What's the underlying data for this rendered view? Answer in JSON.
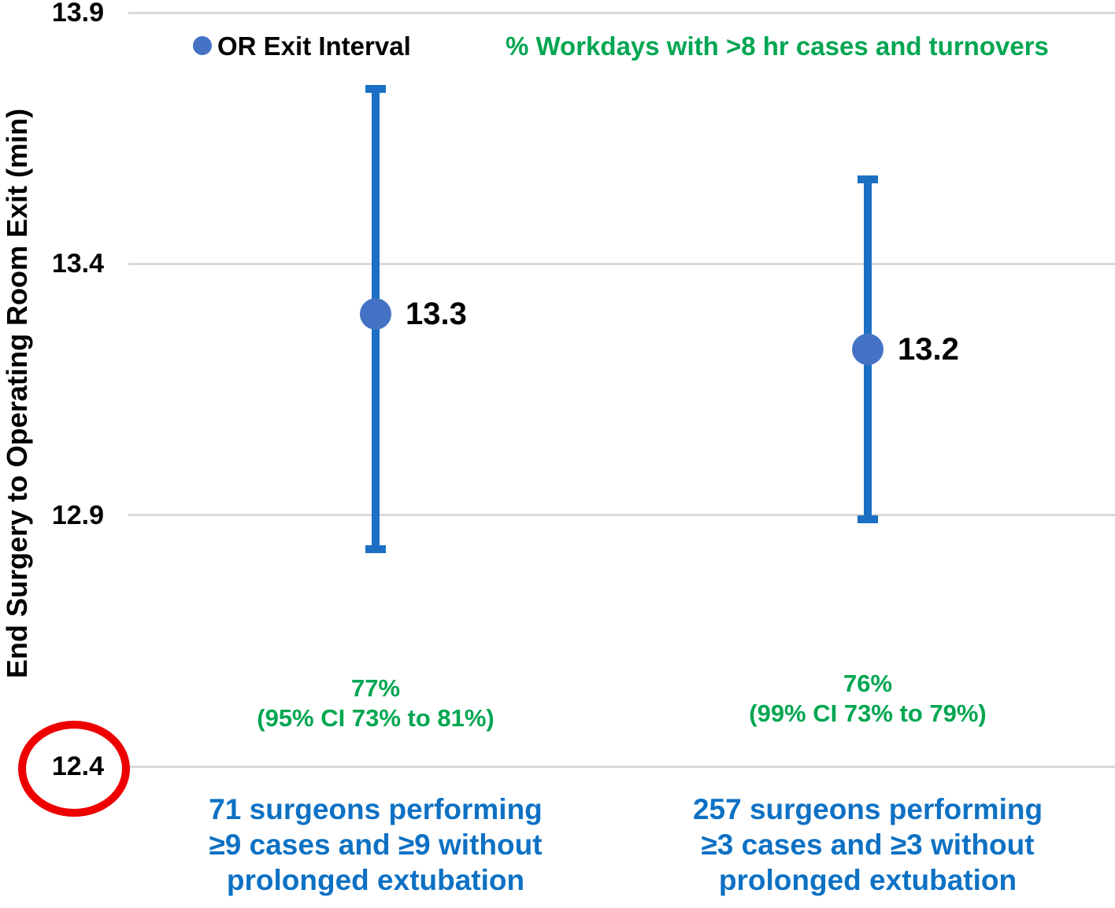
{
  "colors": {
    "marker_blue": "#4472C4",
    "errorbar_blue": "#1B70C4",
    "annotation_green": "#00A651",
    "category_blue": "#0D71C4",
    "gridline_gray": "#D9D9D9",
    "circle_red": "#EE0000",
    "text_black": "#000000"
  },
  "legend": {
    "series_label": "OR Exit Interval",
    "secondary_label": "% Workdays with >8 hr cases and turnovers"
  },
  "chart_data": {
    "type": "scatter",
    "title": "",
    "ylabel": "End Surgery to Operating Room Exit (min)",
    "xlabel": "",
    "ylim": [
      12.4,
      13.9
    ],
    "yticks": [
      "13.9",
      "13.4",
      "12.9",
      "12.4"
    ],
    "ytick_values": [
      13.9,
      13.4,
      12.9,
      12.4
    ],
    "grid": true,
    "legend_position": "top",
    "series_name": "OR Exit Interval",
    "categories": [
      "71 surgeons performing ≥9 cases and ≥9 without prolonged extubation",
      "257 surgeons performing ≥3 cases and ≥3 without prolonged extubation"
    ],
    "points": [
      {
        "value": 13.3,
        "value_label": "13.3",
        "plotted_value": 13.3,
        "ci_low": 12.83,
        "ci_high": 13.75,
        "pct": "77%",
        "pct_ci": "(95% CI 73% to 81%)",
        "category_lines": [
          "71 surgeons performing",
          "≥9 cases and ≥9 without",
          "prolonged extubation"
        ]
      },
      {
        "value": 13.2,
        "value_label": "13.2",
        "plotted_value": 13.23,
        "ci_low": 12.89,
        "ci_high": 13.57,
        "pct": "76%",
        "pct_ci": "(99% CI 73% to 79%)",
        "category_lines": [
          "257 surgeons performing",
          "≥3 cases and ≥3 without",
          "prolonged extubation"
        ]
      }
    ],
    "annotations": {
      "circled_y_tick": "12.4"
    }
  }
}
